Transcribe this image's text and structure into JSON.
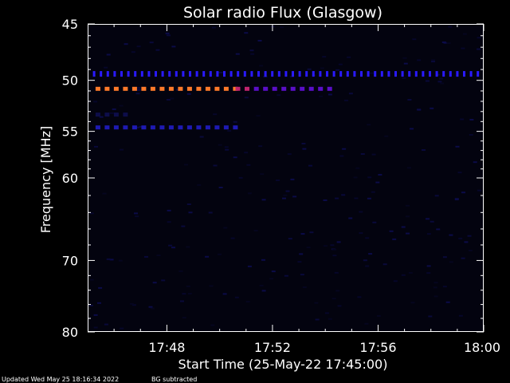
{
  "chart_data": {
    "type": "heatmap",
    "title": "Solar radio Flux (Glasgow)",
    "xlabel": "Start Time (25-May-22 17:45:00)",
    "ylabel": "Frequency [MHz]",
    "x_unit": "minutes after 17:45:00",
    "xlim": [
      0,
      15
    ],
    "ylim": [
      45,
      80
    ],
    "y_scale": "log",
    "x_ticks": [
      {
        "value": 3,
        "label": "17:48"
      },
      {
        "value": 7,
        "label": "17:52"
      },
      {
        "value": 11,
        "label": "17:56"
      },
      {
        "value": 15,
        "label": "18:00"
      }
    ],
    "y_ticks": [
      {
        "value": 45,
        "label": "45"
      },
      {
        "value": 50,
        "label": "50"
      },
      {
        "value": 55,
        "label": "55"
      },
      {
        "value": 60,
        "label": "60"
      },
      {
        "value": 70,
        "label": "70"
      },
      {
        "value": 80,
        "label": "80"
      }
    ],
    "y_minor_ticks": [
      46,
      47,
      48,
      49,
      51,
      52,
      53,
      54,
      56,
      57,
      58,
      59,
      62,
      64,
      66,
      68,
      72,
      74,
      76,
      78
    ],
    "x_minor_ticks": [
      1,
      2,
      4,
      5,
      6,
      8,
      9,
      10,
      12,
      13,
      14
    ],
    "bands": [
      {
        "freq": 49.4,
        "t_start": 0.2,
        "t_end": 15.0,
        "color": "#2a1aff",
        "level": "low"
      },
      {
        "freq": 50.8,
        "t_start": 0.3,
        "t_end": 5.6,
        "color": "#ff7a2a",
        "level": "high"
      },
      {
        "freq": 50.8,
        "t_start": 5.6,
        "t_end": 6.3,
        "color": "#c0246e",
        "level": "medium"
      },
      {
        "freq": 50.8,
        "t_start": 6.3,
        "t_end": 9.4,
        "color": "#5a0fc8",
        "level": "low"
      },
      {
        "freq": 54.6,
        "t_start": 0.3,
        "t_end": 5.8,
        "color": "#1e1ab4",
        "level": "low"
      },
      {
        "freq": 53.3,
        "t_start": 0.3,
        "t_end": 1.6,
        "color": "#0d0d4a",
        "level": "faint"
      }
    ],
    "grid": false,
    "background_color": "#000000",
    "plot_color": "#03030f"
  },
  "footer": {
    "updated": "Updated Wed May 25 18:16:34 2022",
    "note": "BG subtracted"
  }
}
